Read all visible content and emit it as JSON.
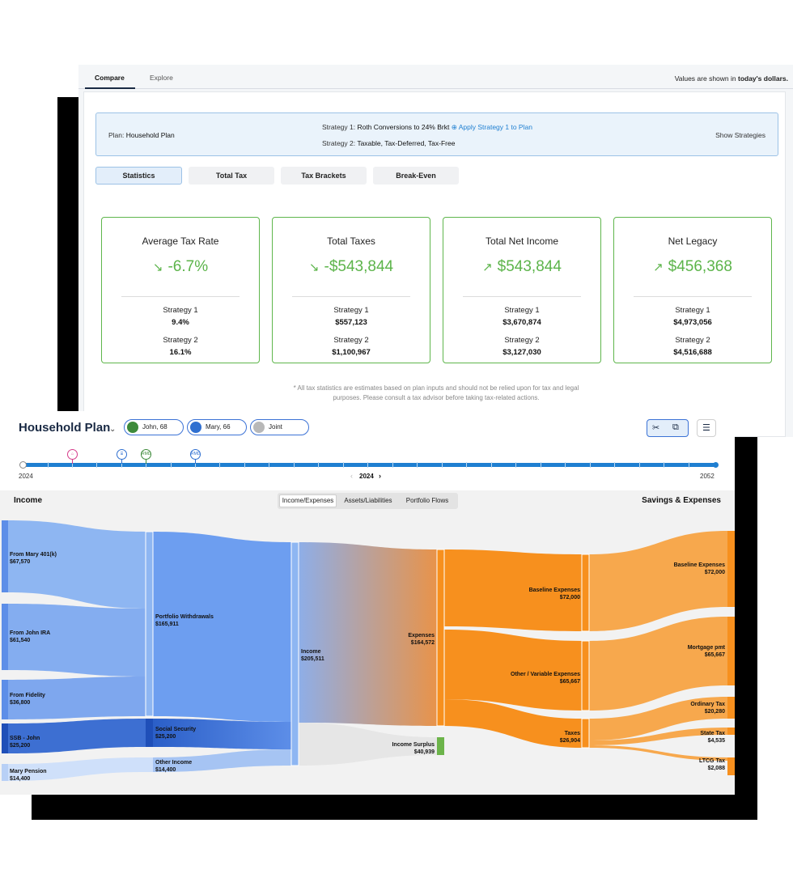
{
  "top_tabs": {
    "compare": "Compare",
    "explore": "Explore"
  },
  "values_note": {
    "prefix": "Values are shown in ",
    "emph": "today's dollars."
  },
  "plan": {
    "label": "Plan:",
    "name": "Household Plan",
    "strategy1_label": "Strategy 1:",
    "strategy1": "Roth Conversions to 24% Brkt",
    "apply_link": "Apply Strategy 1 to Plan",
    "strategy2_label": "Strategy 2:",
    "strategy2": "Taxable, Tax-Deferred, Tax-Free",
    "show_strategies": "Show Strategies"
  },
  "subtabs": [
    "Statistics",
    "Total Tax",
    "Tax Brackets",
    "Break-Even"
  ],
  "cards": [
    {
      "title": "Average Tax Rate",
      "value": "-6.7%",
      "trend": "down",
      "s1_label": "Strategy 1",
      "s1": "9.4%",
      "s2_label": "Strategy 2",
      "s2": "16.1%"
    },
    {
      "title": "Total Taxes",
      "value": "-$543,844",
      "trend": "down",
      "s1_label": "Strategy 1",
      "s1": "$557,123",
      "s2_label": "Strategy 2",
      "s2": "$1,100,967"
    },
    {
      "title": "Total Net Income",
      "value": "$543,844",
      "trend": "up",
      "s1_label": "Strategy 1",
      "s1": "$3,670,874",
      "s2_label": "Strategy 2",
      "s2": "$3,127,030"
    },
    {
      "title": "Net Legacy",
      "value": "$456,368",
      "trend": "up",
      "s1_label": "Strategy 1",
      "s1": "$4,973,056",
      "s2_label": "Strategy 2",
      "s2": "$4,516,688"
    }
  ],
  "disclaimer": "* All tax statistics are estimates based on plan inputs and should not be relied upon for tax and legal purposes. Please consult a tax advisor before taking tax-related actions.",
  "household": {
    "title": "Household Plan",
    "people": [
      "John, 68",
      "Mary, 66",
      "Joint"
    ]
  },
  "timeline": {
    "start": "2024",
    "end": "2052",
    "current": "2024",
    "events": [
      "RMD",
      "RMD"
    ]
  },
  "flow": {
    "income_header": "Income",
    "savings_header": "Savings & Expenses",
    "views": [
      "Income/Expenses",
      "Assets/Liabilities",
      "Portfolio Flows"
    ],
    "sources": [
      {
        "name": "From Mary 401(k)",
        "value": "$67,570"
      },
      {
        "name": "From John IRA",
        "value": "$61,540"
      },
      {
        "name": "From Fidelity",
        "value": "$36,800"
      },
      {
        "name": "SSB - John",
        "value": "$25,200"
      },
      {
        "name": "Mary Pension",
        "value": "$14,400"
      }
    ],
    "groups": [
      {
        "name": "Portfolio Withdrawals",
        "value": "$165,911"
      },
      {
        "name": "Social Security",
        "value": "$25,200"
      },
      {
        "name": "Other Income",
        "value": "$14,400"
      }
    ],
    "income": {
      "name": "Income",
      "value": "$205,511"
    },
    "expenses": {
      "name": "Expenses",
      "value": "$164,572"
    },
    "surplus": {
      "name": "Income Surplus",
      "value": "$40,939"
    },
    "mid": [
      {
        "name": "Baseline Expenses",
        "value": "$72,000"
      },
      {
        "name": "Other / Variable Expenses",
        "value": "$65,667"
      },
      {
        "name": "Taxes",
        "value": "$26,904"
      }
    ],
    "right": [
      {
        "name": "Baseline Expenses",
        "value": "$72,000"
      },
      {
        "name": "Mortgage pmt",
        "value": "$65,667"
      },
      {
        "name": "Ordinary Tax",
        "value": "$20,280"
      },
      {
        "name": "State Tax",
        "value": "$4,535"
      },
      {
        "name": "LTCG Tax",
        "value": "$2,088"
      }
    ]
  },
  "colors": {
    "green": "#5cb44a",
    "blue": "#1f7fd1",
    "orange": "#f7901e"
  }
}
